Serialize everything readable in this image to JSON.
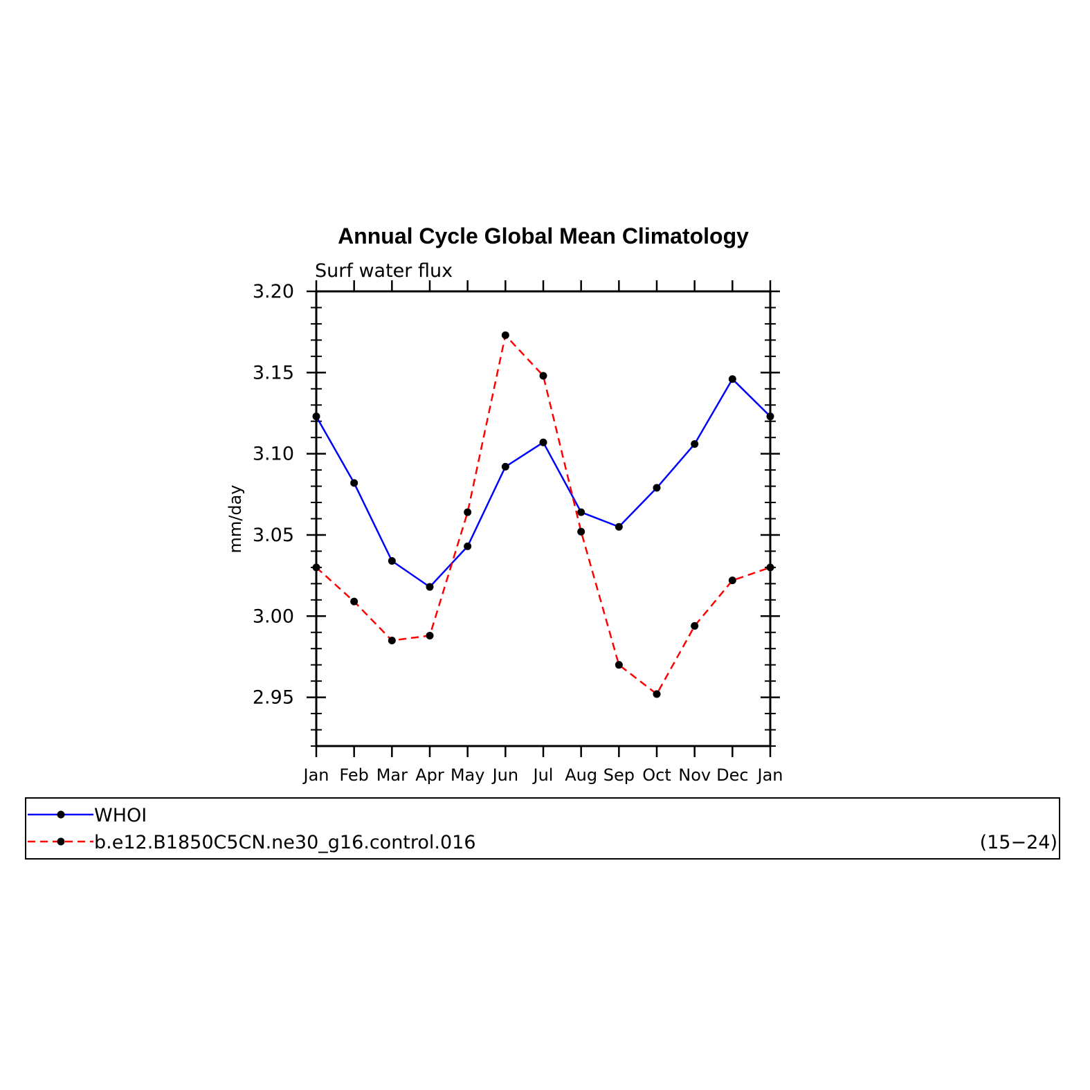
{
  "chart_data": {
    "type": "line",
    "title": "Annual Cycle Global Mean Climatology",
    "subtitle": "Surf water flux",
    "ylabel": "mm/day",
    "xlabel": "",
    "categories": [
      "Jan",
      "Feb",
      "Mar",
      "Apr",
      "May",
      "Jun",
      "Jul",
      "Aug",
      "Sep",
      "Oct",
      "Nov",
      "Dec",
      "Jan"
    ],
    "ylim": [
      2.92,
      3.2
    ],
    "yticks": [
      3.2,
      3.15,
      3.1,
      3.05,
      3.0,
      2.95
    ],
    "ytick_labels": [
      "3.20",
      "3.15",
      "3.10",
      "3.05",
      "3.00",
      "2.95"
    ],
    "grid": false,
    "series": [
      {
        "name": "WHOI",
        "color": "#0000ff",
        "style": "solid",
        "values": [
          3.123,
          3.082,
          3.034,
          3.018,
          3.043,
          3.092,
          3.107,
          3.064,
          3.055,
          3.079,
          3.106,
          3.146,
          3.123
        ]
      },
      {
        "name": "b.e12.B1850C5CN.ne30_g16.control.016",
        "color": "#ff0000",
        "style": "dashed",
        "values": [
          3.03,
          3.009,
          2.985,
          2.988,
          3.064,
          3.173,
          3.148,
          3.052,
          2.97,
          2.952,
          2.994,
          3.022,
          3.03
        ]
      }
    ],
    "legend": {
      "placement": "bottom",
      "years": "(15−24)"
    }
  }
}
